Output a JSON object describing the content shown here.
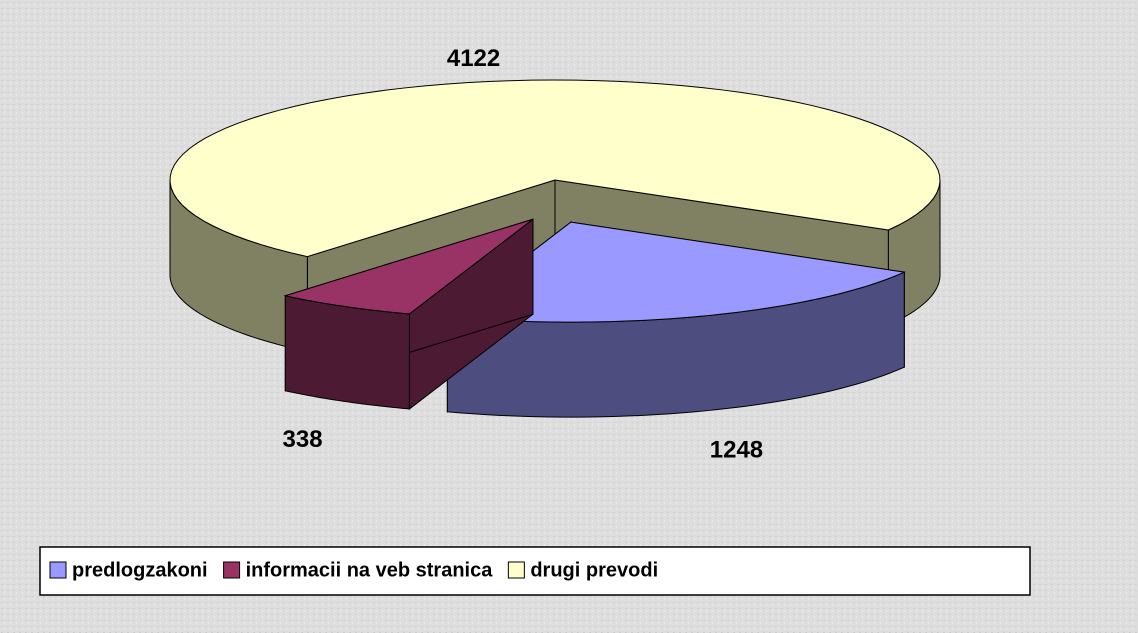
{
  "chart_data": {
    "type": "pie3d",
    "categories": [
      "predlogzakoni",
      "informacii na veb stranica",
      "drugi prevodi"
    ],
    "values": [
      1248,
      338,
      4122
    ],
    "colors": [
      "#9999ff",
      "#993366",
      "#ffffcc"
    ],
    "side_colors": [
      "#4d4d80",
      "#4d1a33",
      "#808062"
    ],
    "exploded": [
      true,
      true,
      false
    ],
    "legend": "bottom"
  }
}
